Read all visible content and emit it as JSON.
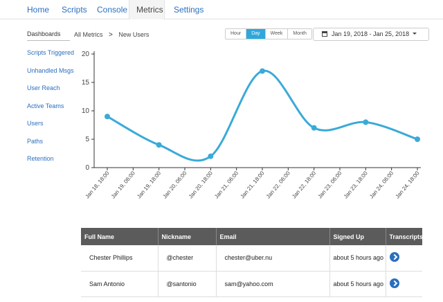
{
  "nav": {
    "tabs": [
      {
        "label": "Home"
      },
      {
        "label": "Scripts"
      },
      {
        "label": "Console"
      },
      {
        "label": "Metrics"
      },
      {
        "label": "Settings"
      }
    ],
    "active": "Metrics"
  },
  "sidebar": {
    "heading": "Dashboards",
    "items": [
      {
        "label": "Scripts Triggered"
      },
      {
        "label": "Unhandled Msgs"
      },
      {
        "label": "User Reach"
      },
      {
        "label": "Active Teams"
      },
      {
        "label": "Users"
      },
      {
        "label": "Paths"
      },
      {
        "label": "Retention"
      }
    ]
  },
  "breadcrumb": {
    "parent": "All Metrics",
    "separator": ">",
    "current": "New Users"
  },
  "granularity": {
    "options": [
      "Hour",
      "Day",
      "Week",
      "Month"
    ],
    "selected": "Day"
  },
  "date_range": {
    "label": "Jan 19, 2018 - Jan 25, 2018"
  },
  "chart_data": {
    "type": "line",
    "x": [
      "Jan 18, 18:00",
      "Jan 19, 18:00",
      "Jan 20, 18:00",
      "Jan 21, 18:00",
      "Jan 22, 18:00",
      "Jan 23, 18:00",
      "Jan 24, 18:00"
    ],
    "xticks": [
      "Jan 18, 18:00",
      "Jan 19, 06:00",
      "Jan 19, 18:00",
      "Jan 20, 06:00",
      "Jan 20, 18:00",
      "Jan 21, 06:00",
      "Jan 21, 18:00",
      "Jan 22, 06:00",
      "Jan 22, 18:00",
      "Jan 23, 06:00",
      "Jan 23, 18:00",
      "Jan 24, 06:00",
      "Jan 24, 18:00"
    ],
    "values": [
      9,
      4,
      2,
      17,
      7,
      8,
      5
    ],
    "yticks": [
      0,
      5,
      10,
      15,
      20
    ],
    "ylim": [
      0,
      20
    ],
    "grid": false,
    "color": "#3aaad8"
  },
  "table": {
    "columns": [
      "Full Name",
      "Nickname",
      "Email",
      "Signed Up",
      "Transcripts"
    ],
    "rows": [
      {
        "name": "Chester Phillips",
        "nickname": "@chester",
        "email": "chester@uber.nu",
        "signed": "about 5 hours ago"
      },
      {
        "name": "Sam Antonio",
        "nickname": "@santonio",
        "email": "sam@yahoo.com",
        "signed": "about 5 hours ago"
      }
    ]
  }
}
